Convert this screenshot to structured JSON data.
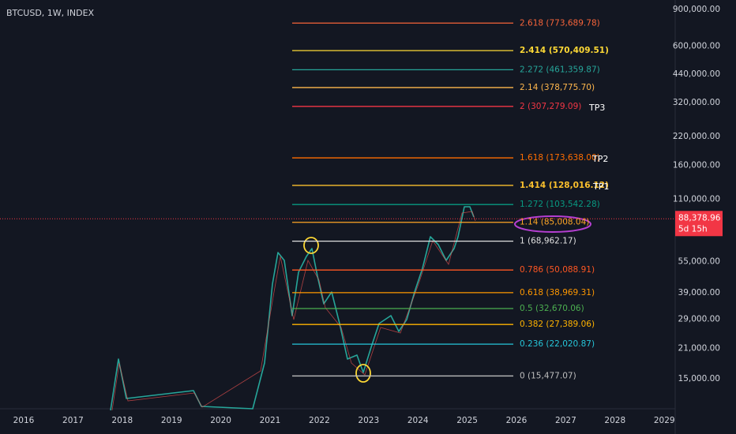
{
  "header": {
    "symbol": "BTCUSD, 1W, INDEX"
  },
  "price_axis": {
    "log_scale": true,
    "ticks": [
      {
        "value": 900000,
        "label": "900,000.00"
      },
      {
        "value": 600000,
        "label": "600,000.00"
      },
      {
        "value": 440000,
        "label": "440,000.00"
      },
      {
        "value": 320000,
        "label": "320,000.00"
      },
      {
        "value": 220000,
        "label": "220,000.00"
      },
      {
        "value": 160000,
        "label": "160,000.00"
      },
      {
        "value": 110000,
        "label": "110,000.00"
      },
      {
        "value": 55000,
        "label": "55,000.00"
      },
      {
        "value": 39000,
        "label": "39,000.00"
      },
      {
        "value": 29000,
        "label": "29,000.00"
      },
      {
        "value": 21000,
        "label": "21,000.00"
      },
      {
        "value": 15000,
        "label": "15,000.00"
      }
    ]
  },
  "current_price": {
    "value": 88378.96,
    "label": "88,378.96",
    "countdown": "5d 15h"
  },
  "time_axis": {
    "years": [
      "2016",
      "2017",
      "2018",
      "2019",
      "2020",
      "2021",
      "2022",
      "2023",
      "2024",
      "2025",
      "2026",
      "2027",
      "2028",
      "2029"
    ]
  },
  "fib_levels": [
    {
      "ratio": "2.618",
      "text": "(773,689.78)",
      "price": 773689.78,
      "color": "#f7643a"
    },
    {
      "ratio": "2.414",
      "text": "(570,409.51)",
      "price": 570409.51,
      "color": "#fdd835",
      "bold": true
    },
    {
      "ratio": "2.272",
      "text": "(461,359.87)",
      "price": 461359.87,
      "color": "#26a69a"
    },
    {
      "ratio": "2.14",
      "text": "(378,775.70)",
      "price": 378775.7,
      "color": "#ffb74d"
    },
    {
      "ratio": "2",
      "text": "(307,279.09)",
      "price": 307279.09,
      "color": "#f23645"
    },
    {
      "ratio": "1.618",
      "text": "(173,638.00)",
      "price": 173638.0,
      "color": "#ff6d00"
    },
    {
      "ratio": "1.414",
      "text": "(128,016.12)",
      "price": 128016.12,
      "color": "#fbc02d",
      "bold": true
    },
    {
      "ratio": "1.272",
      "text": "(103,542.28)",
      "price": 103542.28,
      "color": "#089981"
    },
    {
      "ratio": "1.14",
      "text": "(85,008.04)",
      "price": 85008.04,
      "color": "#ffa726"
    },
    {
      "ratio": "1",
      "text": "(68,962.17)",
      "price": 68962.17,
      "color": "#e0e0e0"
    },
    {
      "ratio": "0.786",
      "text": "(50,088.91)",
      "price": 50088.91,
      "color": "#ff5722"
    },
    {
      "ratio": "0.618",
      "text": "(38,969.31)",
      "price": 38969.31,
      "color": "#ff9800"
    },
    {
      "ratio": "0.5",
      "text": "(32,670.06)",
      "price": 32670.06,
      "color": "#4caf50"
    },
    {
      "ratio": "0.382",
      "text": "(27,389.06)",
      "price": 27389.06,
      "color": "#ffb300"
    },
    {
      "ratio": "0.236",
      "text": "(22,020.87)",
      "price": 22020.87,
      "color": "#26c6da"
    },
    {
      "ratio": "0",
      "text": "(15,477.07)",
      "price": 15477.07,
      "color": "#bdbdbd"
    }
  ],
  "annotations": [
    {
      "text": "TP3",
      "level": 4
    },
    {
      "text": "TP2",
      "level": 5
    },
    {
      "text": "TP1",
      "level": 6
    }
  ]
}
